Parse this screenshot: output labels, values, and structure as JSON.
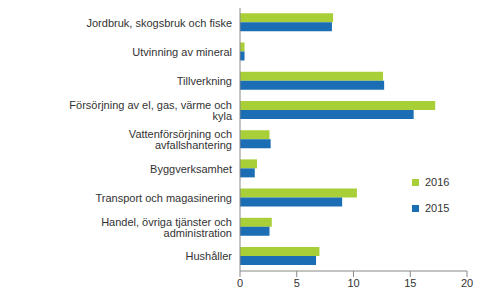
{
  "chart_data": {
    "type": "bar",
    "orientation": "horizontal",
    "categories": [
      "Jordbruk, skogsbruk och fiske",
      "Utvinning av mineral",
      "Tillverkning",
      "Försörjning av el, gas, värme och kyla",
      "Vattenförsörjning och avfallshantering",
      "Byggverksamhet",
      "Transport och magasinering",
      "Handel, övriga tjänster och administration",
      "Hushåller"
    ],
    "series": [
      {
        "name": "2016",
        "color": "#a9cf38",
        "values": [
          8.2,
          0.4,
          12.6,
          17.2,
          2.6,
          1.5,
          10.3,
          2.8,
          7.0
        ]
      },
      {
        "name": "2015",
        "color": "#1b6db4",
        "values": [
          8.1,
          0.4,
          12.7,
          15.3,
          2.7,
          1.3,
          9.0,
          2.6,
          6.7
        ]
      }
    ],
    "xlim": [
      0,
      20
    ],
    "xticks": [
      0,
      5,
      10,
      15,
      20
    ],
    "grid": false,
    "legend": "right"
  }
}
